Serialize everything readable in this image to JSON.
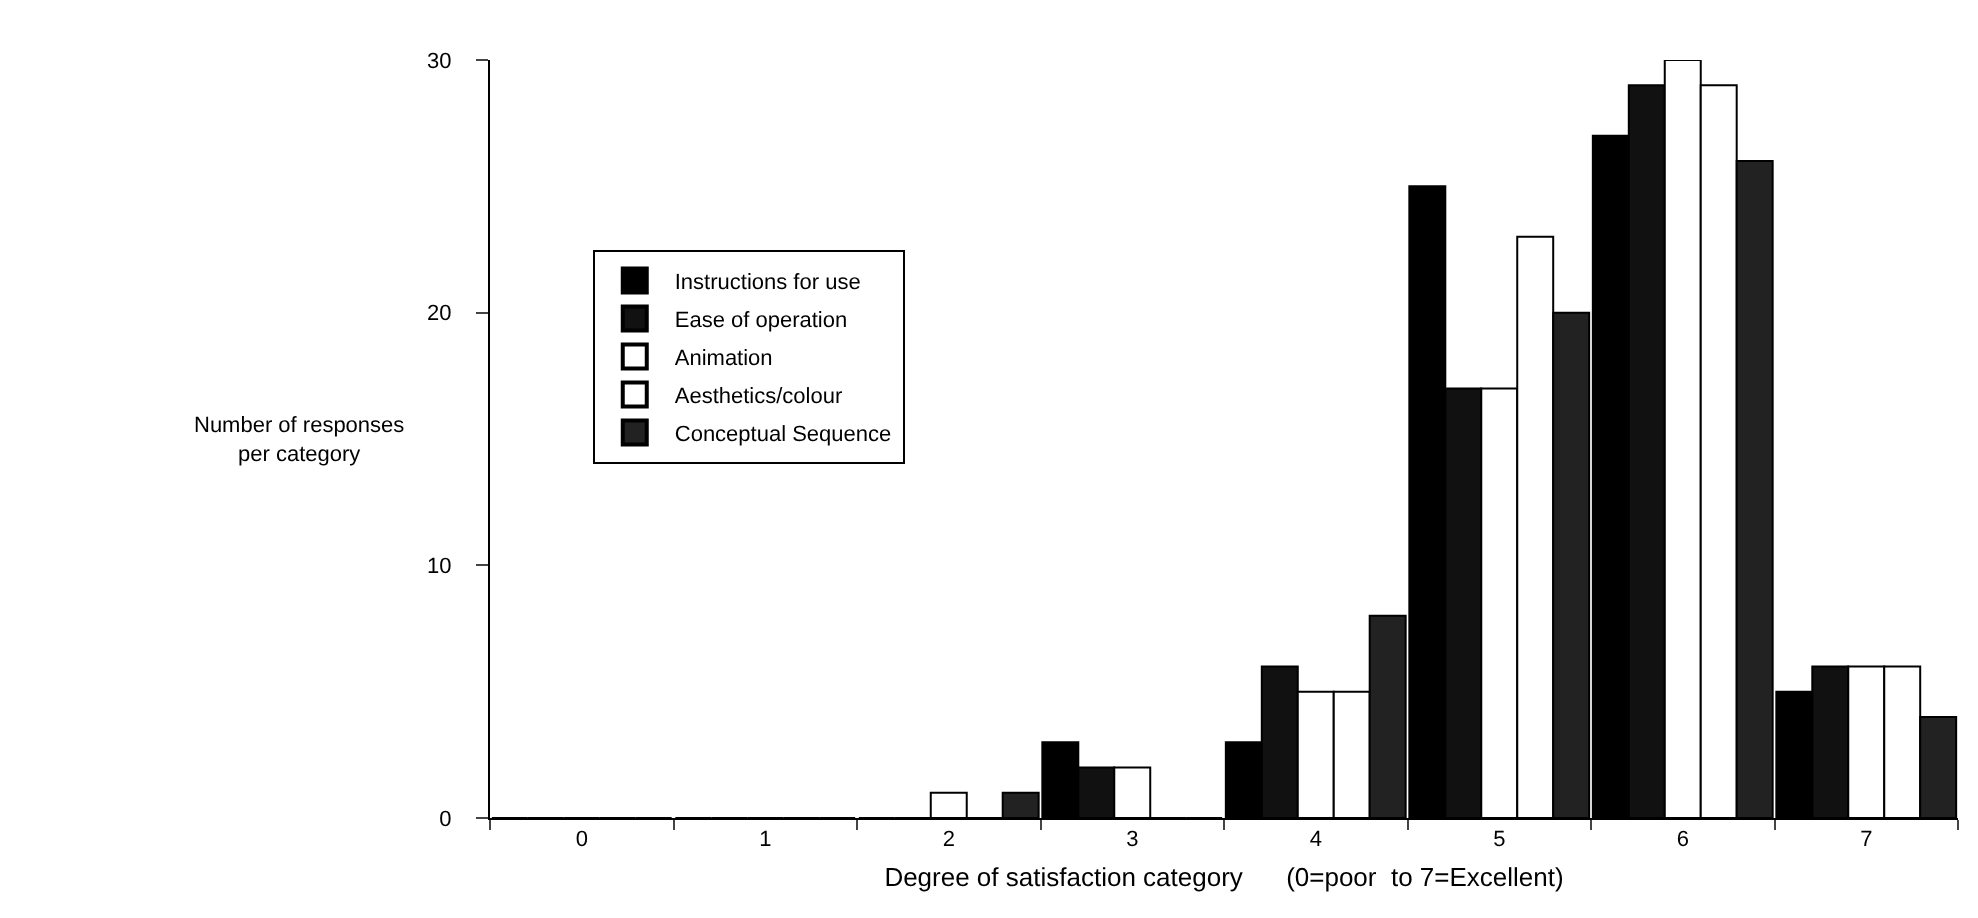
{
  "chart_data": {
    "type": "bar",
    "xlabel": "Degree of satisfaction category      (0=poor  to 7=Excellent)",
    "ylabel": "Number of responses\nper category",
    "categories": [
      "0",
      "1",
      "2",
      "3",
      "4",
      "5",
      "6",
      "7"
    ],
    "series": [
      {
        "name": "Instructions for use",
        "color": "#000000",
        "values": [
          0,
          0,
          0,
          3,
          3,
          25,
          27,
          5
        ]
      },
      {
        "name": "Ease of operation",
        "color": "#111111",
        "values": [
          0,
          0,
          0,
          2,
          6,
          17,
          29,
          6
        ]
      },
      {
        "name": "Animation",
        "color": "#ffffff",
        "values": [
          0,
          0,
          1,
          2,
          5,
          17,
          30,
          6
        ]
      },
      {
        "name": "Aesthetics/colour",
        "color": "#ffffff",
        "values": [
          0,
          0,
          0,
          0,
          5,
          23,
          29,
          6
        ]
      },
      {
        "name": "Conceptual Sequence",
        "color": "#222222",
        "values": [
          0,
          0,
          1,
          0,
          8,
          20,
          26,
          4
        ]
      }
    ],
    "ylim": [
      0,
      30
    ],
    "yticks": [
      0,
      10,
      20,
      30
    ],
    "grid": false,
    "legend": "left"
  }
}
